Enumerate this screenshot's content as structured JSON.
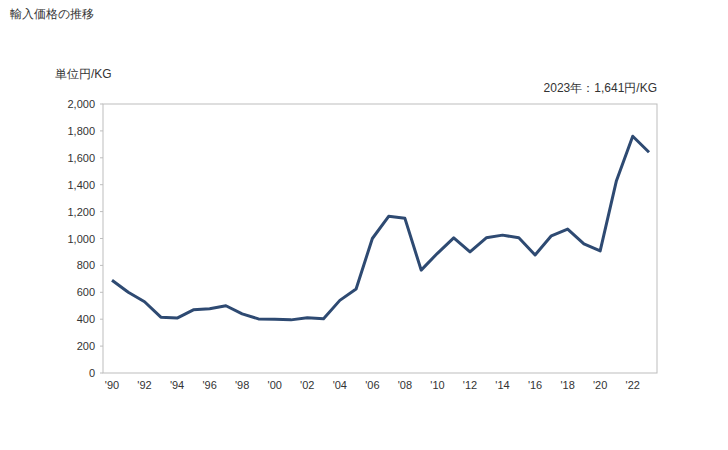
{
  "chart_data": {
    "type": "line",
    "title": "輸入価格の推移",
    "y_label": "単位円/KG",
    "annotation": "2023年：1,641円/KG",
    "categories": [
      "'90",
      null,
      "'92",
      null,
      "'94",
      null,
      "'96",
      null,
      "'98",
      null,
      "'00",
      null,
      "'02",
      null,
      "'04",
      null,
      "'06",
      null,
      "'08",
      null,
      "'10",
      null,
      "'12",
      null,
      "'14",
      null,
      "'16",
      null,
      "'18",
      null,
      "'20",
      null,
      "'22",
      null
    ],
    "values": [
      690,
      600,
      530,
      415,
      408,
      470,
      478,
      500,
      440,
      402,
      400,
      395,
      410,
      403,
      540,
      625,
      1000,
      1165,
      1150,
      765,
      890,
      1005,
      900,
      1005,
      1025,
      1005,
      878,
      1020,
      1070,
      960,
      908,
      1430,
      1760,
      1641
    ],
    "color": "#2e4a72",
    "ylim": [
      0,
      2000
    ],
    "yticks": [
      0,
      200,
      400,
      600,
      800,
      {
        "value": 1000,
        "label": "1,000"
      },
      {
        "value": 1200,
        "label": "1,200"
      },
      {
        "value": 1400,
        "label": "1,400"
      },
      {
        "value": 1600,
        "label": "1,600"
      },
      {
        "value": 1800,
        "label": "1,800"
      },
      {
        "value": 2000,
        "label": "2,000"
      }
    ],
    "grid": false
  }
}
